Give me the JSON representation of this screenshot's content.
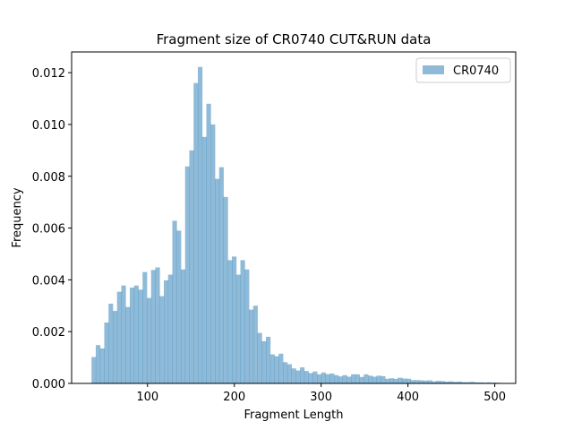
{
  "chart_data": {
    "type": "bar",
    "title": "Fragment size of CR0740 CUT&RUN data",
    "xlabel": "Fragment Length",
    "ylabel": "Frequency",
    "xlim": [
      12.6,
      524.1
    ],
    "ylim": [
      0,
      0.0128
    ],
    "xticks": [
      100,
      200,
      300,
      400,
      500
    ],
    "xtick_labels": [
      "100",
      "200",
      "300",
      "400",
      "500"
    ],
    "yticks": [
      0,
      0.002,
      0.004,
      0.006,
      0.008,
      0.01,
      0.012
    ],
    "ytick_labels": [
      "0.000",
      "0.002",
      "0.004",
      "0.006",
      "0.008",
      "0.010",
      "0.012"
    ],
    "bin_start": 35.5,
    "bin_width": 4.9,
    "legend": {
      "position": "top-right"
    },
    "grid": false,
    "series": [
      {
        "name": "CR0740",
        "color": "#1f77b4",
        "alpha": 0.5,
        "values": [
          0.00102,
          0.00148,
          0.00135,
          0.00235,
          0.00308,
          0.0028,
          0.00354,
          0.00378,
          0.00295,
          0.0037,
          0.00378,
          0.00362,
          0.0043,
          0.0033,
          0.00438,
          0.00448,
          0.00337,
          0.00398,
          0.0042,
          0.00628,
          0.0059,
          0.0044,
          0.00838,
          0.009,
          0.0116,
          0.01222,
          0.00952,
          0.0108,
          0.01,
          0.0079,
          0.00835,
          0.0072,
          0.00476,
          0.0049,
          0.0042,
          0.00476,
          0.0044,
          0.00285,
          0.003,
          0.00195,
          0.00163,
          0.0018,
          0.00112,
          0.00105,
          0.00115,
          0.00082,
          0.00074,
          0.00058,
          0.0005,
          0.00062,
          0.00048,
          0.0004,
          0.00046,
          0.00035,
          0.00042,
          0.00036,
          0.00038,
          0.00032,
          0.00027,
          0.00032,
          0.00026,
          0.00035,
          0.00035,
          0.00025,
          0.00035,
          0.0003,
          0.00026,
          0.0003,
          0.00028,
          0.00018,
          0.0002,
          0.00018,
          0.00022,
          0.00019,
          0.00018,
          0.00013,
          0.00013,
          0.00012,
          0.00011,
          0.00012,
          8e-05,
          0.0001,
          9e-05,
          7e-05,
          8e-05,
          6e-05,
          7e-05,
          5e-05,
          5e-05,
          6e-05,
          4e-05,
          4e-05,
          3e-05,
          4e-05,
          3e-05,
          3e-05
        ]
      }
    ]
  }
}
